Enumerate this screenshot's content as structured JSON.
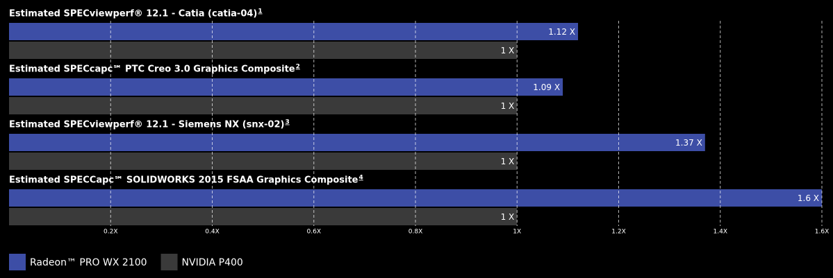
{
  "chart_data": {
    "type": "bar",
    "orientation": "horizontal",
    "categories": [
      "Estimated SPECviewperf® 12.1 - Catia (catia-04)",
      "Estimated SPECcapc℠ PTC Creo 3.0 Graphics Composite",
      "Estimated SPECviewperf® 12.1 - Siemens NX (snx-02)",
      "Estimated SPECCapc℠ SOLIDWORKS 2015 FSAA Graphics Composite"
    ],
    "footnotes": [
      "1",
      "2",
      "3",
      "4"
    ],
    "series": [
      {
        "name": "Radeon™ PRO WX 2100",
        "color": "#3d4ea6",
        "values": [
          1.12,
          1.09,
          1.37,
          1.6
        ],
        "value_labels": [
          "1.12 X",
          "1.09 X",
          "1.37 X",
          "1.6 X"
        ]
      },
      {
        "name": "NVIDIA P400",
        "color": "#3a3a3a",
        "values": [
          1,
          1,
          1,
          1
        ],
        "value_labels": [
          "1 X",
          "1 X",
          "1 X",
          "1 X"
        ]
      }
    ],
    "xlim": [
      0,
      1.6
    ],
    "xticks": [
      {
        "value": 0.2,
        "label": "0.2X"
      },
      {
        "value": 0.4,
        "label": "0.4X"
      },
      {
        "value": 0.6,
        "label": "0.6X"
      },
      {
        "value": 0.8,
        "label": "0.8X"
      },
      {
        "value": 1,
        "label": "1X"
      },
      {
        "value": 1.2,
        "label": "1.2X"
      },
      {
        "value": 1.4,
        "label": "1.4X"
      },
      {
        "value": 1.6,
        "label": "1.6X"
      }
    ],
    "grid": true,
    "legend": "bottom-left"
  }
}
